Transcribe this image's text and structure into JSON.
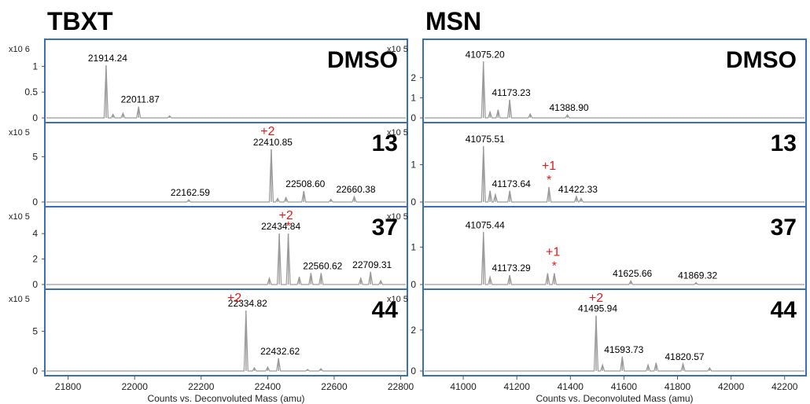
{
  "chart_data": [
    {
      "type": "line",
      "title": "TBXT",
      "xlabel": "Counts vs. Deconvoluted Mass (amu)",
      "xlim": [
        21730,
        22820
      ],
      "x_ticks": [
        "21800",
        "22000",
        "22200",
        "22400",
        "22600",
        "22800"
      ],
      "panels": [
        {
          "condition": "DMSO",
          "scale_label": "x10 6",
          "ylim": [
            0,
            1.25
          ],
          "y_ticks": [
            "0",
            "0.5",
            "1"
          ],
          "peaks": [
            {
              "mass": 21914.24,
              "intensity": 1.02,
              "label": "21914.24"
            },
            {
              "mass": 22011.87,
              "intensity": 0.22,
              "label": "22011.87"
            },
            {
              "mass": 21935,
              "intensity": 0.07,
              "label": ""
            },
            {
              "mass": 21965,
              "intensity": 0.09,
              "label": ""
            },
            {
              "mass": 22105,
              "intensity": 0.04,
              "label": ""
            }
          ],
          "annotations": []
        },
        {
          "condition": "13",
          "scale_label": "x10 5",
          "ylim": [
            0,
            7.2
          ],
          "y_ticks": [
            "0",
            "5"
          ],
          "peaks": [
            {
              "mass": 22162.59,
              "intensity": 0.25,
              "label": "22162.59"
            },
            {
              "mass": 22410.85,
              "intensity": 5.8,
              "label": "22410.85"
            },
            {
              "mass": 22430,
              "intensity": 0.4,
              "label": ""
            },
            {
              "mass": 22455,
              "intensity": 0.5,
              "label": ""
            },
            {
              "mass": 22508.6,
              "intensity": 1.2,
              "label": "22508.60"
            },
            {
              "mass": 22590,
              "intensity": 0.3,
              "label": ""
            },
            {
              "mass": 22660.38,
              "intensity": 0.6,
              "label": "22660.38"
            }
          ],
          "annotations": [
            {
              "text": "+2",
              "mass": 22400
            }
          ]
        },
        {
          "condition": "37",
          "scale_label": "x10 5",
          "ylim": [
            0,
            5.0
          ],
          "y_ticks": [
            "0",
            "2",
            "4"
          ],
          "peaks": [
            {
              "mass": 22405,
              "intensity": 0.5,
              "label": ""
            },
            {
              "mass": 22434.84,
              "intensity": 4.0,
              "label": "22434.84"
            },
            {
              "mass": 22462,
              "intensity": 4.0,
              "label": ""
            },
            {
              "mass": 22495,
              "intensity": 0.6,
              "label": ""
            },
            {
              "mass": 22530,
              "intensity": 0.9,
              "label": ""
            },
            {
              "mass": 22560.62,
              "intensity": 0.9,
              "label": "22560.62"
            },
            {
              "mass": 22680,
              "intensity": 0.5,
              "label": ""
            },
            {
              "mass": 22709.31,
              "intensity": 1.0,
              "label": "22709.31"
            },
            {
              "mass": 22740,
              "intensity": 0.3,
              "label": ""
            }
          ],
          "annotations": [
            {
              "text": "+2",
              "mass": 22455
            },
            {
              "text": "*",
              "mass": 22462
            }
          ]
        },
        {
          "condition": "44",
          "scale_label": "x10 5",
          "ylim": [
            0,
            8.5
          ],
          "y_ticks": [
            "0",
            "5"
          ],
          "peaks": [
            {
              "mass": 22334.82,
              "intensity": 7.6,
              "label": "22334.82"
            },
            {
              "mass": 22360,
              "intensity": 0.4,
              "label": ""
            },
            {
              "mass": 22400,
              "intensity": 0.5,
              "label": ""
            },
            {
              "mass": 22432.62,
              "intensity": 1.6,
              "label": "22432.62"
            },
            {
              "mass": 22520,
              "intensity": 0.2,
              "label": ""
            },
            {
              "mass": 22560,
              "intensity": 0.3,
              "label": ""
            }
          ],
          "annotations": [
            {
              "text": "+2",
              "mass": 22300
            }
          ]
        }
      ]
    },
    {
      "type": "line",
      "title": "MSN",
      "xlabel": "Counts vs. Deconvoluted Mass (amu)",
      "xlim": [
        40850,
        42280
      ],
      "x_ticks": [
        "41000",
        "41200",
        "41400",
        "41600",
        "41800",
        "42000",
        "42200"
      ],
      "panels": [
        {
          "condition": "DMSO",
          "scale_label": "x10 5",
          "ylim": [
            0,
            3.2
          ],
          "y_ticks": [
            "0",
            "1",
            "2"
          ],
          "peaks": [
            {
              "mass": 41075.2,
              "intensity": 2.8,
              "label": "41075.20"
            },
            {
              "mass": 41100,
              "intensity": 0.3,
              "label": ""
            },
            {
              "mass": 41130,
              "intensity": 0.4,
              "label": ""
            },
            {
              "mass": 41173.23,
              "intensity": 0.9,
              "label": "41173.23"
            },
            {
              "mass": 41250,
              "intensity": 0.2,
              "label": ""
            },
            {
              "mass": 41388.9,
              "intensity": 0.15,
              "label": "41388.90"
            }
          ],
          "annotations": []
        },
        {
          "condition": "13",
          "scale_label": "x10 5",
          "ylim": [
            0,
            1.75
          ],
          "y_ticks": [
            "0",
            "1"
          ],
          "peaks": [
            {
              "mass": 41075.51,
              "intensity": 1.5,
              "label": "41075.51"
            },
            {
              "mass": 41100,
              "intensity": 0.3,
              "label": ""
            },
            {
              "mass": 41120,
              "intensity": 0.2,
              "label": ""
            },
            {
              "mass": 41173.64,
              "intensity": 0.3,
              "label": "41173.64"
            },
            {
              "mass": 41320,
              "intensity": 0.4,
              "label": ""
            },
            {
              "mass": 41422.33,
              "intensity": 0.15,
              "label": "41422.33"
            },
            {
              "mass": 41440,
              "intensity": 0.1,
              "label": ""
            }
          ],
          "annotations": [
            {
              "text": "+1",
              "mass": 41320
            },
            {
              "text": "*",
              "mass": 41320
            }
          ]
        },
        {
          "condition": "37",
          "scale_label": "x10 5",
          "ylim": [
            0,
            1.7
          ],
          "y_ticks": [
            "0",
            "1"
          ],
          "peaks": [
            {
              "mass": 41075.44,
              "intensity": 1.4,
              "label": "41075.44"
            },
            {
              "mass": 41100,
              "intensity": 0.2,
              "label": ""
            },
            {
              "mass": 41173.29,
              "intensity": 0.25,
              "label": "41173.29"
            },
            {
              "mass": 41315,
              "intensity": 0.3,
              "label": ""
            },
            {
              "mass": 41340,
              "intensity": 0.3,
              "label": ""
            },
            {
              "mass": 41625.66,
              "intensity": 0.1,
              "label": "41625.66"
            },
            {
              "mass": 41869.32,
              "intensity": 0.05,
              "label": "41869.32"
            }
          ],
          "annotations": [
            {
              "text": "+1",
              "mass": 41335
            },
            {
              "text": "*",
              "mass": 41340
            }
          ]
        },
        {
          "condition": "44",
          "scale_label": "x10 5",
          "ylim": [
            0,
            3.3
          ],
          "y_ticks": [
            "0",
            "2"
          ],
          "peaks": [
            {
              "mass": 41495.94,
              "intensity": 2.7,
              "label": "41495.94"
            },
            {
              "mass": 41520,
              "intensity": 0.3,
              "label": ""
            },
            {
              "mass": 41593.73,
              "intensity": 0.7,
              "label": "41593.73"
            },
            {
              "mass": 41690,
              "intensity": 0.3,
              "label": ""
            },
            {
              "mass": 41720,
              "intensity": 0.4,
              "label": ""
            },
            {
              "mass": 41820.57,
              "intensity": 0.35,
              "label": "41820.57"
            },
            {
              "mass": 41920,
              "intensity": 0.15,
              "label": ""
            }
          ],
          "annotations": [
            {
              "text": "+2",
              "mass": 41495.94
            }
          ]
        }
      ]
    }
  ],
  "colors": {
    "panel_border": "#3a6fba",
    "trace": "#9a9a9a",
    "annotation": "#e31a1c",
    "text": "#000000"
  }
}
